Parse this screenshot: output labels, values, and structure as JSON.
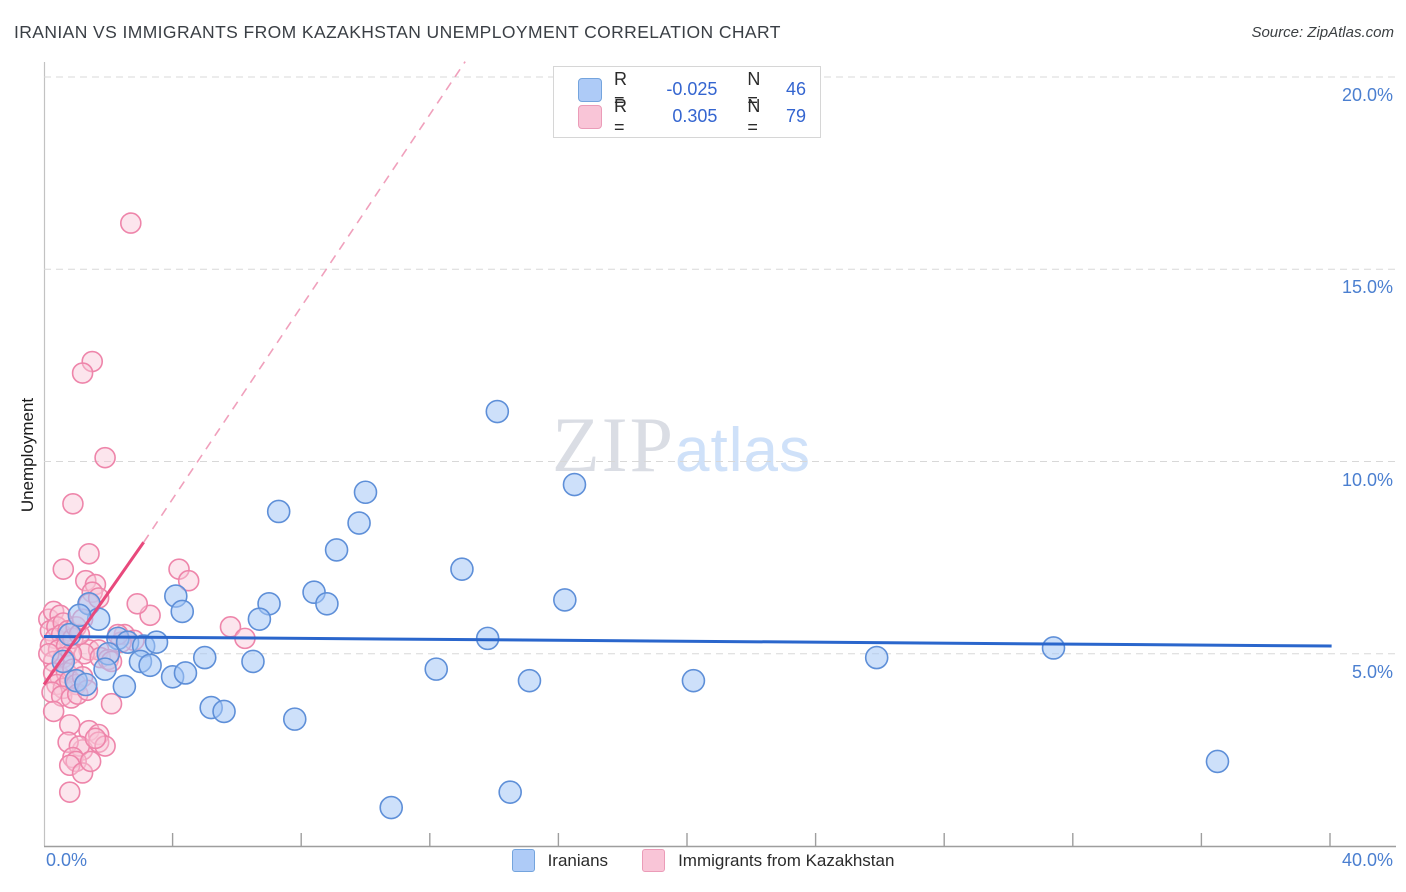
{
  "title": "IRANIAN VS IMMIGRANTS FROM KAZAKHSTAN UNEMPLOYMENT CORRELATION CHART",
  "source": "Source: ZipAtlas.com",
  "ylabel": "Unemployment",
  "watermark": {
    "zip": "ZIP",
    "atlas": "atlas"
  },
  "legend_box": {
    "rows": [
      {
        "series": "Iranians",
        "r_label": "R =",
        "r_value": "-0.025",
        "n_label": "N =",
        "n_value": "46"
      },
      {
        "series": "Immigrants from Kazakhstan",
        "r_label": "R =",
        "r_value": "0.305",
        "n_label": "N =",
        "n_value": "79"
      }
    ]
  },
  "bottom_legend": {
    "items": [
      {
        "label": "Iranians",
        "color": "#aecbf7"
      },
      {
        "label": "Immigrants from Kazakhstan",
        "color": "#f9c5d7"
      }
    ]
  },
  "axes": {
    "x_min_label": "0.0%",
    "x_max_label": "40.0%",
    "x_tick_values": [
      4,
      8,
      12,
      16,
      20,
      24,
      28,
      32,
      36,
      40
    ],
    "y_ticks": [
      {
        "value": 5,
        "label": "5.0%"
      },
      {
        "value": 10,
        "label": "10.0%"
      },
      {
        "value": 15,
        "label": "15.0%"
      },
      {
        "value": 20,
        "label": "20.0%"
      }
    ]
  },
  "colors": {
    "axis_label_blue": "#4b7fd0",
    "legend_value_blue": "#3465d0",
    "blue_point_fill": "rgba(164,199,245,0.55)",
    "blue_point_stroke": "#5e8fd8",
    "pink_point_fill": "rgba(248,198,216,0.45)",
    "pink_point_stroke": "#ee85aa",
    "blue_trend": "#2a66cc",
    "pink_trend": "#e8497c",
    "pink_trend_dashed": "#f0a0bc",
    "gridline": "#d8d8d8",
    "x_axis_line": "#9e9e9e",
    "y_axis_line": "#c2c2c2"
  },
  "chart_data": {
    "type": "scatter",
    "title": "IRANIAN VS IMMIGRANTS FROM KAZAKHSTAN UNEMPLOYMENT CORRELATION CHART",
    "xlabel": "",
    "ylabel": "Unemployment",
    "x_axis": {
      "min": 0,
      "max": 40,
      "unit": "%",
      "tick_labels_shown": [
        "0.0%",
        "40.0%"
      ]
    },
    "y_axis": {
      "min": 0,
      "max": 20.5,
      "unit": "%",
      "gridlines": [
        5,
        10,
        15,
        20
      ],
      "labels_side": "right"
    },
    "grid": "dashed horizontal",
    "legend_position": "top-center and bottom-center",
    "series": [
      {
        "name": "Iranians",
        "R": -0.025,
        "N": 46,
        "points": [
          [
            14.1,
            11.3
          ],
          [
            16.5,
            9.4
          ],
          [
            10.0,
            9.2
          ],
          [
            7.3,
            8.7
          ],
          [
            9.8,
            8.4
          ],
          [
            9.1,
            7.7
          ],
          [
            13.0,
            7.2
          ],
          [
            16.2,
            6.4
          ],
          [
            8.4,
            6.6
          ],
          [
            8.8,
            6.3
          ],
          [
            7.0,
            6.3
          ],
          [
            6.7,
            5.9
          ],
          [
            13.8,
            5.4
          ],
          [
            6.5,
            4.8
          ],
          [
            12.2,
            4.6
          ],
          [
            15.1,
            4.3
          ],
          [
            20.2,
            4.3
          ],
          [
            25.9,
            4.9
          ],
          [
            31.4,
            5.15
          ],
          [
            36.5,
            2.2
          ],
          [
            10.8,
            1.0
          ],
          [
            14.5,
            1.4
          ],
          [
            5.2,
            3.6
          ],
          [
            5.6,
            3.5
          ],
          [
            7.8,
            3.3
          ],
          [
            1.4,
            6.3
          ],
          [
            4.1,
            6.5
          ],
          [
            4.3,
            6.1
          ],
          [
            2.3,
            5.4
          ],
          [
            2.6,
            5.3
          ],
          [
            2.0,
            5.0
          ],
          [
            3.1,
            5.2
          ],
          [
            3.5,
            5.3
          ],
          [
            3.0,
            4.8
          ],
          [
            3.3,
            4.7
          ],
          [
            4.0,
            4.4
          ],
          [
            4.4,
            4.5
          ],
          [
            1.0,
            4.3
          ],
          [
            1.3,
            4.2
          ],
          [
            2.5,
            4.15
          ],
          [
            1.7,
            5.9
          ],
          [
            0.8,
            5.5
          ],
          [
            1.1,
            6.0
          ],
          [
            5.0,
            4.9
          ],
          [
            0.6,
            4.8
          ],
          [
            1.9,
            4.6
          ]
        ]
      },
      {
        "name": "Immigrants from Kazakhstan",
        "R": 0.305,
        "N": 79,
        "points": [
          [
            2.7,
            16.2
          ],
          [
            1.5,
            12.6
          ],
          [
            1.2,
            12.3
          ],
          [
            1.9,
            10.1
          ],
          [
            0.9,
            8.9
          ],
          [
            1.4,
            7.6
          ],
          [
            0.6,
            7.2
          ],
          [
            1.3,
            6.9
          ],
          [
            1.6,
            6.8
          ],
          [
            1.5,
            6.6
          ],
          [
            1.4,
            6.3
          ],
          [
            2.5,
            5.5
          ],
          [
            2.8,
            5.35
          ],
          [
            2.4,
            5.3
          ],
          [
            2.3,
            5.5
          ],
          [
            1.7,
            6.45
          ],
          [
            1.4,
            5.1
          ],
          [
            1.7,
            5.1
          ],
          [
            1.25,
            5.0
          ],
          [
            1.75,
            4.9
          ],
          [
            2.0,
            4.85
          ],
          [
            2.1,
            4.8
          ],
          [
            4.2,
            7.2
          ],
          [
            4.5,
            6.9
          ],
          [
            3.3,
            6.0
          ],
          [
            2.9,
            6.3
          ],
          [
            5.8,
            5.7
          ],
          [
            6.25,
            5.4
          ],
          [
            0.15,
            5.9
          ],
          [
            0.3,
            6.1
          ],
          [
            0.5,
            6.0
          ],
          [
            0.2,
            5.6
          ],
          [
            0.4,
            5.7
          ],
          [
            0.6,
            5.8
          ],
          [
            0.35,
            5.4
          ],
          [
            0.55,
            5.5
          ],
          [
            0.75,
            5.6
          ],
          [
            0.2,
            5.2
          ],
          [
            0.45,
            5.1
          ],
          [
            0.7,
            5.2
          ],
          [
            0.9,
            5.4
          ],
          [
            1.0,
            5.7
          ],
          [
            1.1,
            5.5
          ],
          [
            0.85,
            5.0
          ],
          [
            0.6,
            4.9
          ],
          [
            0.3,
            4.8
          ],
          [
            0.15,
            5.0
          ],
          [
            1.2,
            5.9
          ],
          [
            0.3,
            4.5
          ],
          [
            0.5,
            4.4
          ],
          [
            0.7,
            4.5
          ],
          [
            0.9,
            4.6
          ],
          [
            0.4,
            4.2
          ],
          [
            0.6,
            4.1
          ],
          [
            0.8,
            4.3
          ],
          [
            1.0,
            4.2
          ],
          [
            1.2,
            4.4
          ],
          [
            0.25,
            4.0
          ],
          [
            0.55,
            3.9
          ],
          [
            0.85,
            3.85
          ],
          [
            1.05,
            3.95
          ],
          [
            1.35,
            4.05
          ],
          [
            0.3,
            3.5
          ],
          [
            0.8,
            3.15
          ],
          [
            1.4,
            3.0
          ],
          [
            1.7,
            2.9
          ],
          [
            1.2,
            2.5
          ],
          [
            0.75,
            2.7
          ],
          [
            1.1,
            2.6
          ],
          [
            1.7,
            2.7
          ],
          [
            1.9,
            2.6
          ],
          [
            0.9,
            2.3
          ],
          [
            1.0,
            2.2
          ],
          [
            0.8,
            2.1
          ],
          [
            1.2,
            1.9
          ],
          [
            0.8,
            1.4
          ],
          [
            1.6,
            2.8
          ],
          [
            1.45,
            2.2
          ],
          [
            2.1,
            3.7
          ]
        ]
      }
    ],
    "trend_lines": [
      {
        "series": "Iranians",
        "style": "solid",
        "from": [
          0,
          5.45
        ],
        "to": [
          40.05,
          5.2
        ]
      },
      {
        "series": "Immigrants from Kazakhstan",
        "style": "solid",
        "from": [
          0,
          4.2
        ],
        "to": [
          3.1,
          7.9
        ]
      },
      {
        "series": "Immigrants from Kazakhstan",
        "style": "dashed",
        "from": [
          3.1,
          7.9
        ],
        "to": [
          13.1,
          20.4
        ]
      }
    ]
  }
}
